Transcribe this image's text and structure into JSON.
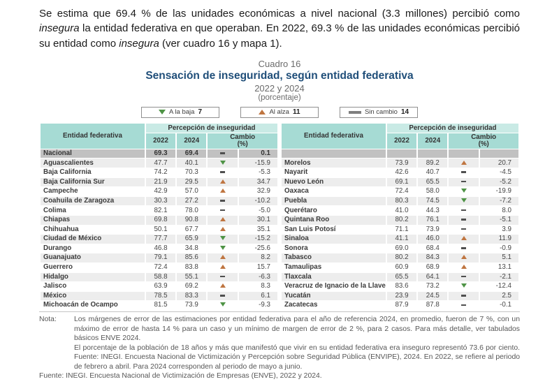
{
  "intro": {
    "seg1": "Se estima que 69.4 % de las unidades económicas a nivel nacional (3.3 millones) percibió como ",
    "seg2_italic": "insegura",
    "seg3": " la entidad federativa en que operaban. En 2022, 69.3 % de las unidades económicas percibió su entidad como ",
    "seg4_italic": "insegura",
    "seg5": " (ver cuadro 16 y mapa 1)."
  },
  "header": {
    "kicker": "Cuadro 16",
    "title": "Sensación de inseguridad, según entidad federativa",
    "subtitle": "2022 y 2024",
    "unit": "(porcentaje)"
  },
  "legend": {
    "down": {
      "label": "A la baja",
      "count": "7",
      "color": "#4e9345"
    },
    "up": {
      "label": "Al alza",
      "count": "11",
      "color": "#bf7540"
    },
    "same": {
      "label": "Sin cambio",
      "count": "14",
      "color": "#7f7f7f"
    }
  },
  "colors": {
    "header_teal": "#a6dbd4",
    "group_band_teal": "#c9eae5",
    "national_row_gray": "#c1c1c1",
    "stripe_gray": "#ededed",
    "title_navy": "#1f4e79",
    "trend_down_green": "#4e9345",
    "trend_up_orange": "#bf7540"
  },
  "table": {
    "headers": {
      "entity": "Entidad federativa",
      "group": "Percepción de inseguridad",
      "y2022": "2022",
      "y2024": "2024",
      "change_line1": "Cambio",
      "change_line2": "(%)"
    },
    "national_row": {
      "name": "Nacional",
      "v2022": "69.3",
      "v2024": "69.4",
      "dir": "same",
      "change": "0.1"
    },
    "left_rows": [
      {
        "name": "Aguascalientes",
        "v2022": "47.7",
        "v2024": "40.1",
        "dir": "down",
        "change": "-15.9"
      },
      {
        "name": "Baja California",
        "v2022": "74.2",
        "v2024": "70.3",
        "dir": "same",
        "change": "-5.3"
      },
      {
        "name": "Baja California Sur",
        "v2022": "21.9",
        "v2024": "29.5",
        "dir": "up",
        "change": "34.7"
      },
      {
        "name": "Campeche",
        "v2022": "42.9",
        "v2024": "57.0",
        "dir": "up",
        "change": "32.9"
      },
      {
        "name": "Coahuila de Zaragoza",
        "v2022": "30.3",
        "v2024": "27.2",
        "dir": "same",
        "change": "-10.2"
      },
      {
        "name": "Colima",
        "v2022": "82.1",
        "v2024": "78.0",
        "dir": "same",
        "change": "-5.0"
      },
      {
        "name": "Chiapas",
        "v2022": "69.8",
        "v2024": "90.8",
        "dir": "up",
        "change": "30.1"
      },
      {
        "name": "Chihuahua",
        "v2022": "50.1",
        "v2024": "67.7",
        "dir": "up",
        "change": "35.1"
      },
      {
        "name": "Ciudad de México",
        "v2022": "77.7",
        "v2024": "65.9",
        "dir": "down",
        "change": "-15.2"
      },
      {
        "name": "Durango",
        "v2022": "46.8",
        "v2024": "34.8",
        "dir": "down",
        "change": "-25.6"
      },
      {
        "name": "Guanajuato",
        "v2022": "79.1",
        "v2024": "85.6",
        "dir": "up",
        "change": "8.2"
      },
      {
        "name": "Guerrero",
        "v2022": "72.4",
        "v2024": "83.8",
        "dir": "up",
        "change": "15.7"
      },
      {
        "name": "Hidalgo",
        "v2022": "58.8",
        "v2024": "55.1",
        "dir": "same",
        "change": "-6.3"
      },
      {
        "name": "Jalisco",
        "v2022": "63.9",
        "v2024": "69.2",
        "dir": "up",
        "change": "8.3"
      },
      {
        "name": "México",
        "v2022": "78.5",
        "v2024": "83.3",
        "dir": "same",
        "change": "6.1"
      },
      {
        "name": "Michoacán de Ocampo",
        "v2022": "81.5",
        "v2024": "73.9",
        "dir": "down",
        "change": "-9.3"
      }
    ],
    "right_rows": [
      {
        "name": "Morelos",
        "v2022": "73.9",
        "v2024": "89.2",
        "dir": "up",
        "change": "20.7"
      },
      {
        "name": "Nayarit",
        "v2022": "42.6",
        "v2024": "40.7",
        "dir": "same",
        "change": "-4.5"
      },
      {
        "name": "Nuevo León",
        "v2022": "69.1",
        "v2024": "65.5",
        "dir": "same",
        "change": "-5.2"
      },
      {
        "name": "Oaxaca",
        "v2022": "72.4",
        "v2024": "58.0",
        "dir": "down",
        "change": "-19.9"
      },
      {
        "name": "Puebla",
        "v2022": "80.3",
        "v2024": "74.5",
        "dir": "down",
        "change": "-7.2"
      },
      {
        "name": "Querétaro",
        "v2022": "41.0",
        "v2024": "44.3",
        "dir": "same",
        "change": "8.0"
      },
      {
        "name": "Quintana Roo",
        "v2022": "80.2",
        "v2024": "76.1",
        "dir": "same",
        "change": "-5.1"
      },
      {
        "name": "San Luis Potosí",
        "v2022": "71.1",
        "v2024": "73.9",
        "dir": "same",
        "change": "3.9"
      },
      {
        "name": "Sinaloa",
        "v2022": "41.1",
        "v2024": "46.0",
        "dir": "up",
        "change": "11.9"
      },
      {
        "name": "Sonora",
        "v2022": "69.0",
        "v2024": "68.4",
        "dir": "same",
        "change": "-0.9"
      },
      {
        "name": "Tabasco",
        "v2022": "80.2",
        "v2024": "84.3",
        "dir": "up",
        "change": "5.1"
      },
      {
        "name": "Tamaulipas",
        "v2022": "60.9",
        "v2024": "68.9",
        "dir": "up",
        "change": "13.1"
      },
      {
        "name": "Tlaxcala",
        "v2022": "65.5",
        "v2024": "64.1",
        "dir": "same",
        "change": "-2.1"
      },
      {
        "name": "Veracruz de Ignacio de la Llave",
        "v2022": "83.6",
        "v2024": "73.2",
        "dir": "down",
        "change": "-12.4"
      },
      {
        "name": "Yucatán",
        "v2022": "23.9",
        "v2024": "24.5",
        "dir": "same",
        "change": "2.5"
      },
      {
        "name": "Zacatecas",
        "v2022": "87.9",
        "v2024": "87.8",
        "dir": "same",
        "change": "-0.1"
      }
    ]
  },
  "notes": {
    "label": "Nota:",
    "note1": "Los márgenes de error de las estimaciones por entidad federativa para el año de referencia 2024, en promedio, fueron de 7 %, con un máximo de error de hasta 14 % para un caso y un mínimo de margen de error de 2 %, para 2 casos. Para más detalle, ver tabulados básicos ENVE 2024.",
    "note2": "El porcentaje de la población de 18 años y más que manifestó que vivir en su entidad federativa era inseguro representó 73.6 por ciento. Fuente: INEGI. Encuesta Nacional de Victimización y Percepción sobre Seguridad Pública (ENVIPE), 2024. En 2022, se refiere al periodo de febrero a abril. Para 2024 corresponden al periodo de mayo a junio.",
    "source_label": "Fuente:",
    "source": "INEGI. Encuesta Nacional de Victimización de Empresas (ENVE), 2022 y 2024."
  }
}
